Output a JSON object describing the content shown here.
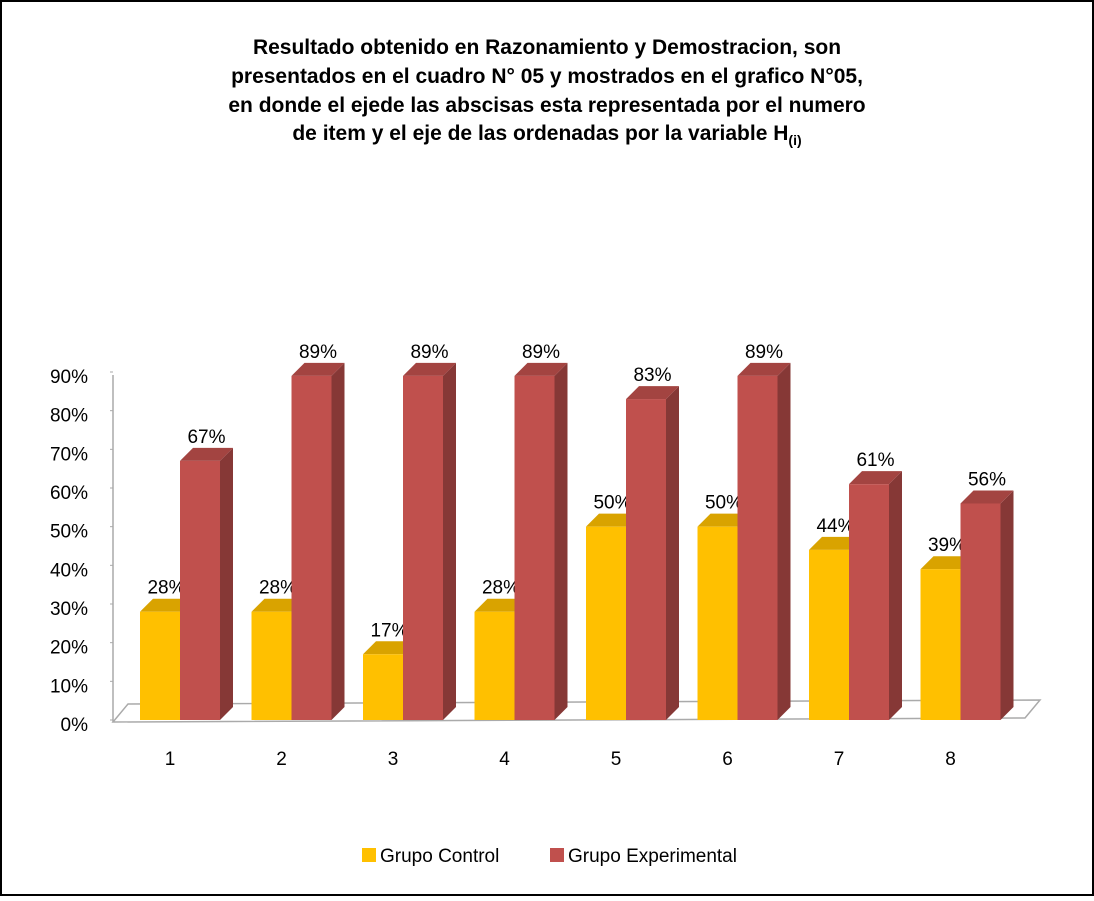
{
  "chart_data": {
    "type": "bar3d",
    "title": [
      "Resultado obtenido en Razonamiento y Demostracion, son",
      "presentados en el cuadro  N° 05 y mostrados en el grafico N°05,",
      "en donde el ejede las abscisas esta representada por el numero",
      "de item y el eje de las ordenadas por la variable H"
    ],
    "title_subscript": "(i)",
    "categories": [
      "1",
      "2",
      "3",
      "4",
      "5",
      "6",
      "7",
      "8"
    ],
    "series": [
      {
        "name": "Grupo Control",
        "color": "#ffc000",
        "values": [
          28,
          28,
          17,
          28,
          50,
          50,
          44,
          39
        ],
        "value_labels": [
          "28%",
          "28%",
          "17%",
          "28%",
          "50%",
          "50%",
          "44%",
          "39%"
        ]
      },
      {
        "name": "Grupo Experimental",
        "color": "#c0504d",
        "values": [
          67,
          89,
          89,
          89,
          83,
          89,
          61,
          56
        ],
        "value_labels": [
          "67%",
          "89%",
          "89%",
          "89%",
          "83%",
          "89%",
          "61%",
          "56%"
        ]
      }
    ],
    "ylim": [
      0,
      90
    ],
    "yticks": [
      {
        "value": 0,
        "label": "0%"
      },
      {
        "value": 10,
        "label": "10%"
      },
      {
        "value": 20,
        "label": "20%"
      },
      {
        "value": 30,
        "label": "30%"
      },
      {
        "value": 40,
        "label": "40%"
      },
      {
        "value": 50,
        "label": "50%"
      },
      {
        "value": 60,
        "label": "60%"
      },
      {
        "value": 70,
        "label": "70%"
      },
      {
        "value": 80,
        "label": "80%"
      },
      {
        "value": 90,
        "label": "90%"
      }
    ],
    "legend": "bottom"
  }
}
